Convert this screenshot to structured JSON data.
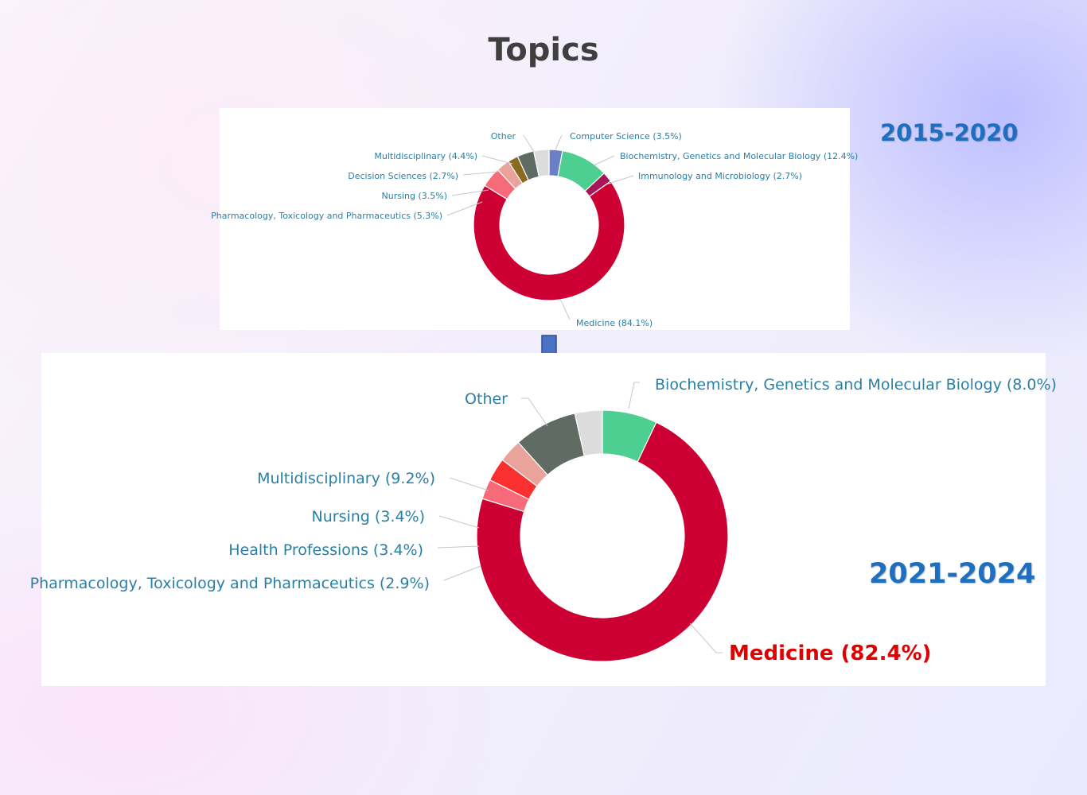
{
  "title": "Topics",
  "arrow_icon": "arrow-down-icon",
  "chart_data": [
    {
      "type": "pie",
      "donut": true,
      "period": "2015-2020",
      "unit": "%",
      "slices": [
        {
          "label": "Computer Science (3.5%)",
          "name": "Computer Science",
          "value": 3.5,
          "color": "#6a7fc7"
        },
        {
          "label": "Biochemistry, Genetics and Molecular Biology (12.4%)",
          "name": "Biochemistry, Genetics and Molecular Biology",
          "value": 12.4,
          "color": "#4ccf90"
        },
        {
          "label": "Immunology and Microbiology (2.7%)",
          "name": "Immunology and Microbiology",
          "value": 2.7,
          "color": "#a8165a"
        },
        {
          "label": "Medicine (84.1%)",
          "name": "Medicine",
          "value": 84.1,
          "color": "#cc0033"
        },
        {
          "label": "Pharmacology, Toxicology and Pharmaceutics (5.3%)",
          "name": "Pharmacology, Toxicology and Pharmaceutics",
          "value": 5.3,
          "color": "#f76a7a"
        },
        {
          "label": "Nursing (3.5%)",
          "name": "Nursing",
          "value": 3.5,
          "color": "#e9a39a"
        },
        {
          "label": "Decision Sciences (2.7%)",
          "name": "Decision Sciences",
          "value": 2.7,
          "color": "#8a6a20"
        },
        {
          "label": "Multidisciplinary (4.4%)",
          "name": "Multidisciplinary",
          "value": 4.4,
          "color": "#5f6b63"
        },
        {
          "label": "Other",
          "name": "Other",
          "value": null,
          "color": "#dcdcdc"
        }
      ]
    },
    {
      "type": "pie",
      "donut": true,
      "period": "2021-2024",
      "unit": "%",
      "highlight": "Medicine",
      "highlight_color": "#e00000",
      "slices": [
        {
          "label": "Biochemistry, Genetics and Molecular Biology (8.0%)",
          "name": "Biochemistry, Genetics and Molecular Biology",
          "value": 8.0,
          "color": "#4ccf90"
        },
        {
          "label": "Medicine (82.4%)",
          "name": "Medicine",
          "value": 82.4,
          "color": "#cc0033"
        },
        {
          "label": "Pharmacology, Toxicology and Pharmaceutics (2.9%)",
          "name": "Pharmacology, Toxicology and Pharmaceutics",
          "value": 2.9,
          "color": "#f76a7a"
        },
        {
          "label": "Health Professions (3.4%)",
          "name": "Health Professions",
          "value": 3.4,
          "color": "#fa3030"
        },
        {
          "label": "Nursing (3.4%)",
          "name": "Nursing",
          "value": 3.4,
          "color": "#e9a39a"
        },
        {
          "label": "Multidisciplinary (9.2%)",
          "name": "Multidisciplinary",
          "value": 9.2,
          "color": "#5f6b63"
        },
        {
          "label": "Other",
          "name": "Other",
          "value": null,
          "color": "#dcdcdc"
        }
      ]
    }
  ]
}
